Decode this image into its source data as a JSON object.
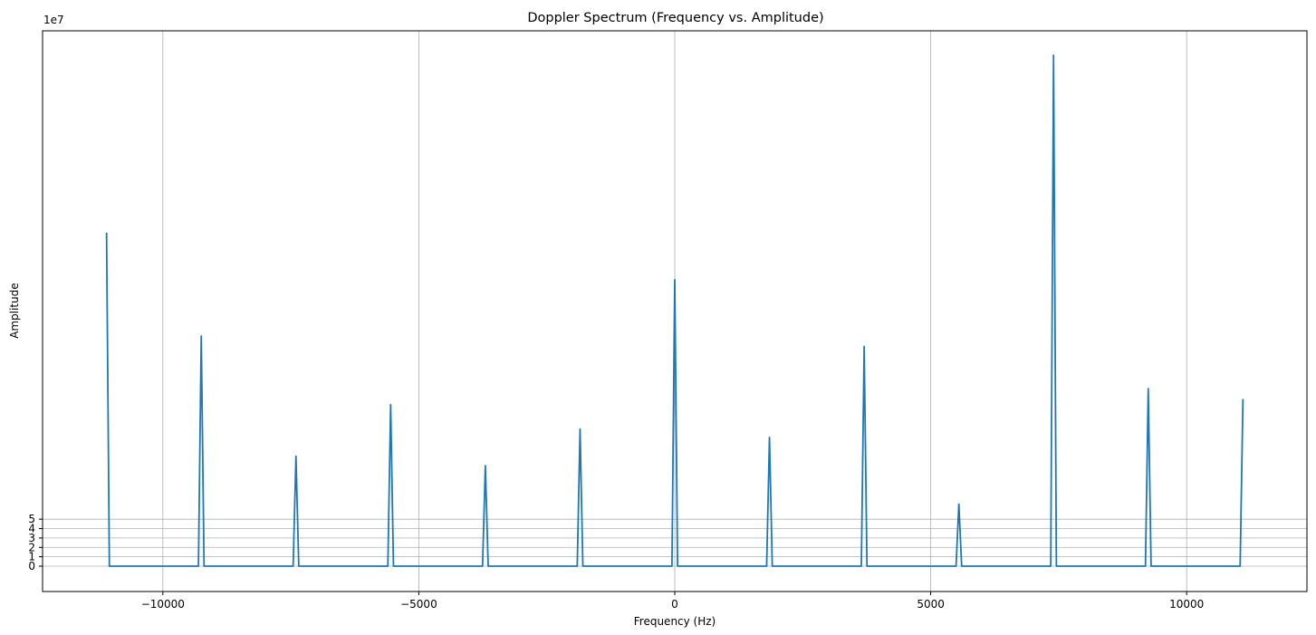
{
  "chart_data": {
    "type": "line",
    "title": "Doppler Spectrum (Frequency vs. Amplitude)",
    "xlabel": "Frequency (Hz)",
    "ylabel": "Amplitude",
    "y_offset_label": "1e7",
    "xlim": [
      -12350,
      12350
    ],
    "ylim": [
      -2.7,
      57
    ],
    "xticks": [
      -10000,
      -5000,
      0,
      5000,
      10000
    ],
    "xtick_labels": [
      "−10000",
      "−5000",
      "0",
      "5000",
      "10000"
    ],
    "yticks": [
      0,
      1,
      2,
      3,
      4,
      5
    ],
    "ytick_labels": [
      "0",
      "1",
      "2",
      "3",
      "4",
      "5"
    ],
    "grid": true,
    "series_color": "#1f77b4",
    "baseline": 0,
    "peaks": [
      {
        "x": -11100,
        "y": 35.5
      },
      {
        "x": -9250,
        "y": 24.5
      },
      {
        "x": -7400,
        "y": 11.7
      },
      {
        "x": -5550,
        "y": 17.2
      },
      {
        "x": -3700,
        "y": 10.7
      },
      {
        "x": -1850,
        "y": 14.6
      },
      {
        "x": 0,
        "y": 30.5
      },
      {
        "x": 1850,
        "y": 13.7
      },
      {
        "x": 3700,
        "y": 23.4
      },
      {
        "x": 5550,
        "y": 6.6
      },
      {
        "x": 7400,
        "y": 54.4
      },
      {
        "x": 9250,
        "y": 18.9
      },
      {
        "x": 11100,
        "y": 17.8
      }
    ]
  }
}
